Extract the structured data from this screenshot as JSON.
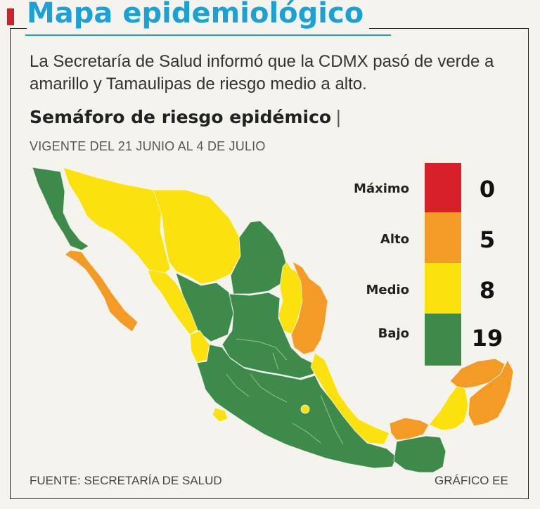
{
  "header": {
    "title": "Mapa epidemiológico",
    "subtitle": "La Secretaría de Salud informó que la CDMX pasó de verde a amarillo y Tamaulipas de riesgo medio a alto."
  },
  "section": {
    "heading": "Semáforo de riesgo epidémico",
    "separator": "|",
    "dateline": "VIGENTE DEL 21 JUNIO AL 4 DE JULIO"
  },
  "legend": [
    {
      "label": "Máximo",
      "count": "0",
      "color": "#d7202a"
    },
    {
      "label": "Alto",
      "count": "5",
      "color": "#f39b25"
    },
    {
      "label": "Medio",
      "count": "8",
      "color": "#fbe10e"
    },
    {
      "label": "Bajo",
      "count": "19",
      "color": "#3d8a4a"
    }
  ],
  "footer": {
    "source": "FUENTE: SECRETARÍA DE SALUD",
    "credit": "GRÁFICO EE"
  },
  "map": {
    "colors": {
      "green": "#3d8a4a",
      "orange": "#f39b25",
      "yellow": "#fbe10e"
    },
    "state_levels": {
      "baja-california": "Bajo",
      "baja-california-sur": "Alto",
      "sonora": "Medio",
      "chihuahua": "Medio",
      "sinaloa": "Medio",
      "nayarit": "Medio",
      "coahuila": "Bajo",
      "nuevo-leon": "Medio",
      "tamaulipas": "Alto",
      "veracruz": "Medio",
      "cdmx": "Medio",
      "tabasco": "Alto",
      "campeche": "Medio",
      "yucatan": "Alto",
      "quintana-roo": "Alto",
      "chiapas": "Bajo",
      "oaxaca": "Bajo",
      "guerrero": "Bajo",
      "interior-states": "Bajo"
    }
  }
}
